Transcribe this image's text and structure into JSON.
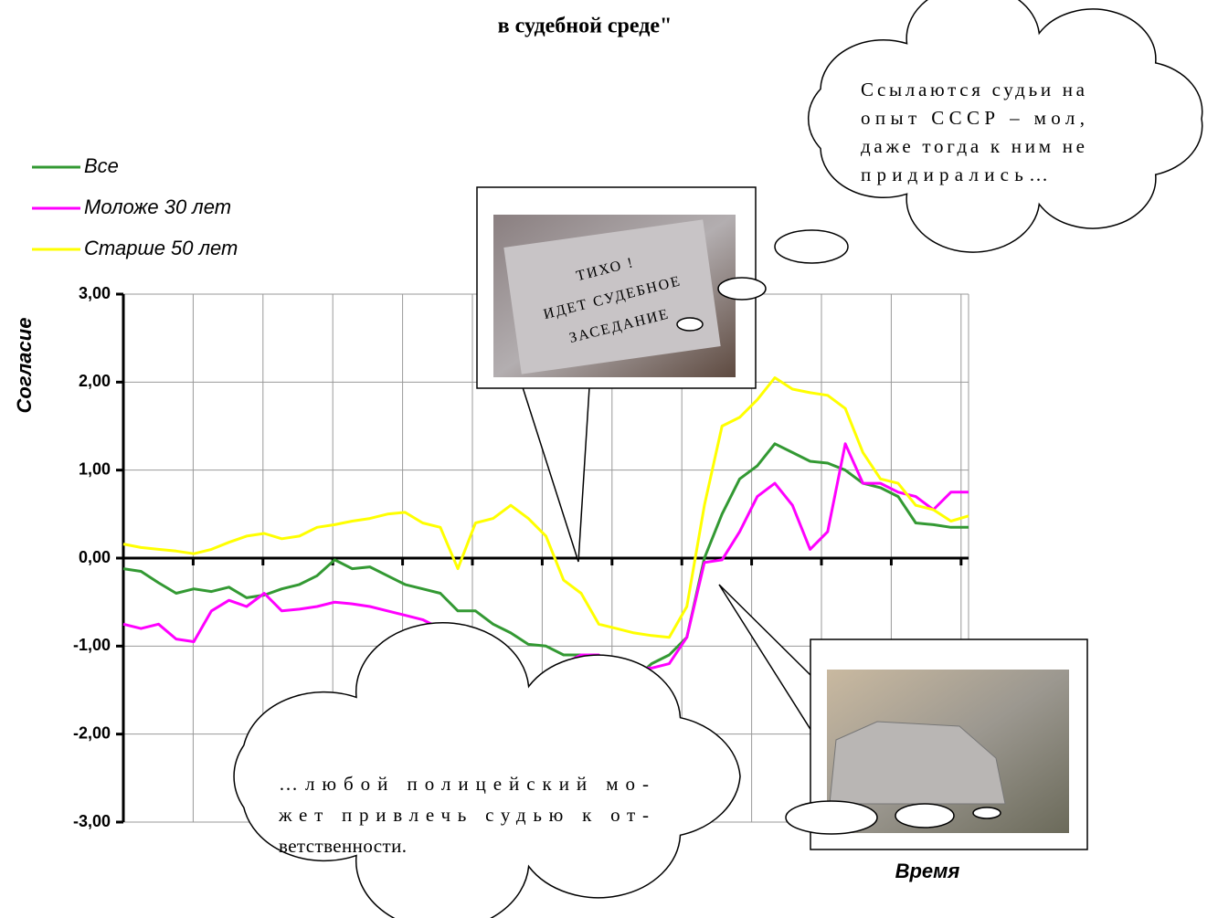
{
  "chart_data": {
    "type": "line",
    "title": "в судебной среде\"",
    "y_label": "Согласие",
    "x_label": "Время",
    "categories": [
      null,
      null,
      null,
      null,
      null,
      null,
      null,
      null,
      null,
      null,
      null,
      null,
      null,
      null,
      null,
      null,
      null,
      null,
      null,
      null,
      null,
      null,
      null,
      null,
      null,
      null,
      null,
      null,
      null,
      null,
      null,
      null,
      null,
      null,
      null,
      null,
      null,
      null,
      null,
      null,
      null,
      null,
      null,
      null,
      null,
      null,
      null,
      null,
      null
    ],
    "series": [
      {
        "name": "Все",
        "color": "#339933",
        "values": [
          -0.12,
          -0.15,
          -0.28,
          -0.4,
          -0.35,
          -0.38,
          -0.33,
          -0.45,
          -0.42,
          -0.35,
          -0.3,
          -0.2,
          -0.02,
          -0.12,
          -0.1,
          -0.2,
          -0.3,
          -0.35,
          -0.4,
          -0.6,
          -0.6,
          -0.75,
          -0.85,
          -0.98,
          -1.0,
          -1.1,
          -1.1,
          -1.2,
          -1.35,
          -1.38,
          -1.2,
          -1.1,
          -0.9,
          0.0,
          0.5,
          0.9,
          1.05,
          1.3,
          1.2,
          1.1,
          1.08,
          1.0,
          0.85,
          0.8,
          0.7,
          0.4,
          0.38,
          0.35,
          0.35
        ]
      },
      {
        "name": "Моложе 30 лет",
        "color": "#ff00ff",
        "values": [
          -0.75,
          -0.8,
          -0.75,
          -0.92,
          -0.95,
          -0.6,
          -0.48,
          -0.55,
          -0.4,
          -0.6,
          -0.58,
          -0.55,
          -0.5,
          -0.52,
          -0.55,
          -0.6,
          -0.65,
          -0.7,
          -0.8,
          -1.1,
          -1.3,
          -1.5,
          -1.68,
          -1.6,
          -1.35,
          -1.2,
          -1.1,
          -1.1,
          -1.28,
          -1.25,
          -1.25,
          -1.2,
          -0.9,
          -0.05,
          -0.02,
          0.3,
          0.7,
          0.85,
          0.6,
          0.1,
          0.3,
          1.3,
          0.85,
          0.85,
          0.75,
          0.7,
          0.55,
          0.75,
          0.75
        ]
      },
      {
        "name": "Старше 50 лет",
        "color": "#ffff00",
        "values": [
          0.16,
          0.12,
          0.1,
          0.08,
          0.05,
          0.1,
          0.18,
          0.25,
          0.28,
          0.22,
          0.25,
          0.35,
          0.38,
          0.42,
          0.45,
          0.5,
          0.52,
          0.4,
          0.35,
          -0.12,
          0.4,
          0.45,
          0.6,
          0.45,
          0.25,
          -0.25,
          -0.4,
          -0.75,
          -0.8,
          -0.85,
          -0.88,
          -0.9,
          -0.55,
          0.6,
          1.5,
          1.6,
          1.8,
          2.05,
          1.92,
          1.88,
          1.85,
          1.7,
          1.2,
          0.9,
          0.85,
          0.6,
          0.55,
          0.42,
          0.48
        ]
      }
    ],
    "ylim": [
      -3,
      3
    ],
    "yticks": [
      {
        "value": -3,
        "label": "-3,00"
      },
      {
        "value": -2,
        "label": "-2,00"
      },
      {
        "value": -1,
        "label": "-1,00"
      },
      {
        "value": 0,
        "label": "0,00"
      },
      {
        "value": 1,
        "label": "1,00"
      },
      {
        "value": 2,
        "label": "2,00"
      },
      {
        "value": 3,
        "label": "3,00"
      }
    ],
    "grid": true,
    "legend": "top-left",
    "annotations": [
      {
        "lines": [
          "Ссылаются судьи на",
          "опыт СССР – мол,",
          "даже тогда к ним не",
          "придирались…"
        ]
      },
      {
        "lines": [
          "…любой полицейский мо-",
          "жет привлечь судью к от-",
          "ветственности."
        ]
      },
      {
        "lines": [
          "ТИХО !",
          "ИДЕТ СУДЕБНОЕ",
          "ЗАСЕДАНИЕ"
        ]
      }
    ]
  }
}
